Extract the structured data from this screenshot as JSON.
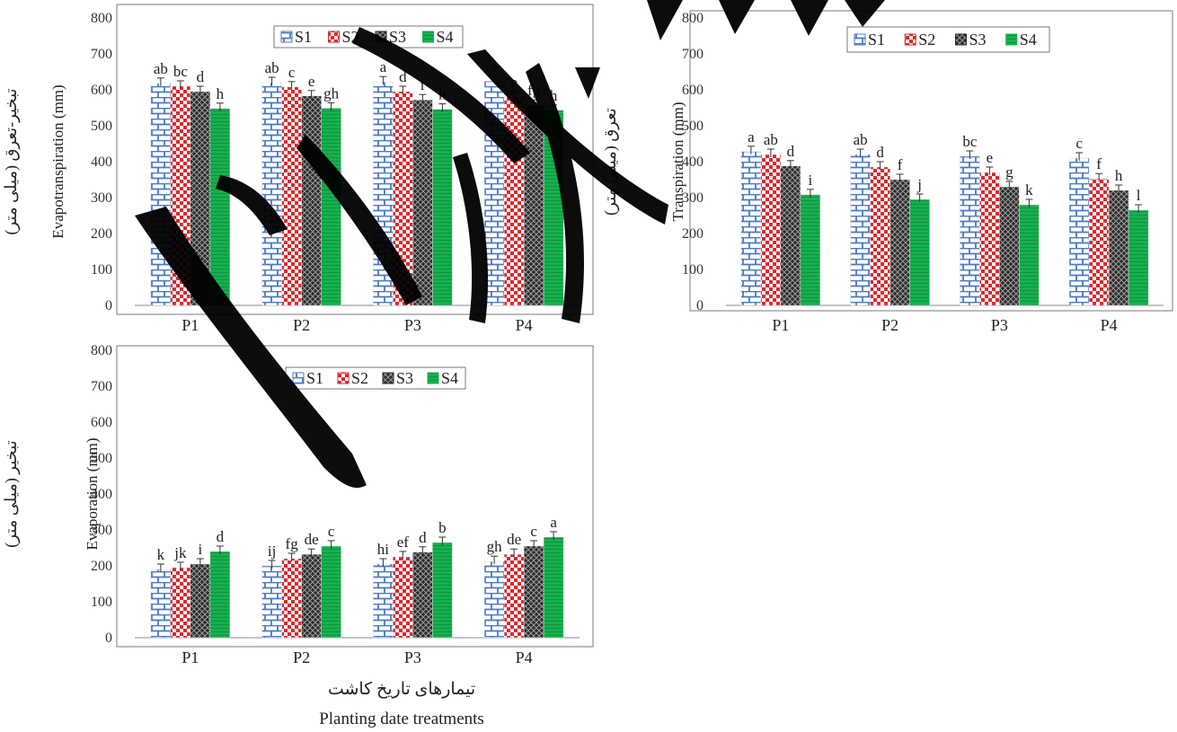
{
  "colors": {
    "S1": "#4a78c8",
    "S2": "#e0262b",
    "S3": "#2b2b2b",
    "S4": "#16b04e",
    "watermark": "#000000"
  },
  "watermark_icon": "brush-stroke-watermark",
  "xlabel_fa": "تیمارهای تاریخ کاشت",
  "xlabel_en": "Planting date treatments",
  "chart_data": [
    {
      "id": "et",
      "type": "bar",
      "categories": [
        "P1",
        "P2",
        "P3",
        "P4"
      ],
      "ylim": [
        0,
        800
      ],
      "yticks": [
        0,
        100,
        200,
        300,
        400,
        500,
        600,
        700,
        800
      ],
      "ylabel_fa": "تبخیر-تعرق (میلی متر)",
      "ylabel_en": "Evapotranspiration (mm)",
      "legend": [
        "S1",
        "S2",
        "S3",
        "S4"
      ],
      "legend_position": "top-center",
      "grid": false,
      "series": [
        {
          "name": "S1",
          "values": [
            618,
            620,
            622,
            624
          ],
          "letters": [
            "ab",
            "ab",
            "a",
            "a"
          ]
        },
        {
          "name": "S2",
          "values": [
            610,
            608,
            595,
            580
          ],
          "letters": [
            "bc",
            "c",
            "d",
            "e"
          ]
        },
        {
          "name": "S3",
          "values": [
            595,
            583,
            572,
            557
          ],
          "letters": [
            "d",
            "e",
            "f",
            "fg"
          ]
        },
        {
          "name": "S4",
          "values": [
            548,
            549,
            546,
            543
          ],
          "letters": [
            "h",
            "gh",
            "h",
            "h"
          ]
        }
      ]
    },
    {
      "id": "tr",
      "type": "bar",
      "categories": [
        "P1",
        "P2",
        "P3",
        "P4"
      ],
      "ylim": [
        0,
        800
      ],
      "yticks": [
        0,
        100,
        200,
        300,
        400,
        500,
        600,
        700,
        800
      ],
      "ylabel_fa": "تعرق (میلی متر)",
      "ylabel_en": "Transpiration (mm)",
      "legend": [
        "S1",
        "S2",
        "S3",
        "S4"
      ],
      "legend_position": "top-center",
      "grid": false,
      "series": [
        {
          "name": "S1",
          "values": [
            428,
            420,
            415,
            410
          ],
          "letters": [
            "a",
            "ab",
            "bc",
            "c"
          ]
        },
        {
          "name": "S2",
          "values": [
            420,
            385,
            370,
            352
          ],
          "letters": [
            "ab",
            "d",
            "e",
            "f"
          ]
        },
        {
          "name": "S3",
          "values": [
            388,
            350,
            330,
            320
          ],
          "letters": [
            "d",
            "f",
            "g",
            "h"
          ]
        },
        {
          "name": "S4",
          "values": [
            308,
            295,
            280,
            265
          ],
          "letters": [
            "i",
            "j",
            "k",
            "l"
          ]
        }
      ]
    },
    {
      "id": "ev",
      "type": "bar",
      "categories": [
        "P1",
        "P2",
        "P3",
        "P4"
      ],
      "ylim": [
        0,
        800
      ],
      "yticks": [
        0,
        100,
        200,
        300,
        400,
        500,
        600,
        700,
        800
      ],
      "ylabel_fa": "تبخیر (میلی متر)",
      "ylabel_en": "Evaporation (mm)",
      "legend": [
        "S1",
        "S2",
        "S3",
        "S4"
      ],
      "legend_position": "top-center",
      "grid": false,
      "series": [
        {
          "name": "S1",
          "values": [
            190,
            200,
            205,
            212
          ],
          "letters": [
            "k",
            "ij",
            "hi",
            "gh"
          ]
        },
        {
          "name": "S2",
          "values": [
            195,
            220,
            225,
            232
          ],
          "letters": [
            "jk",
            "fg",
            "ef",
            "de"
          ]
        },
        {
          "name": "S3",
          "values": [
            205,
            232,
            238,
            255
          ],
          "letters": [
            "i",
            "de",
            "d",
            "c"
          ]
        },
        {
          "name": "S4",
          "values": [
            240,
            255,
            265,
            280
          ],
          "letters": [
            "d",
            "c",
            "b",
            "a"
          ]
        }
      ]
    }
  ]
}
